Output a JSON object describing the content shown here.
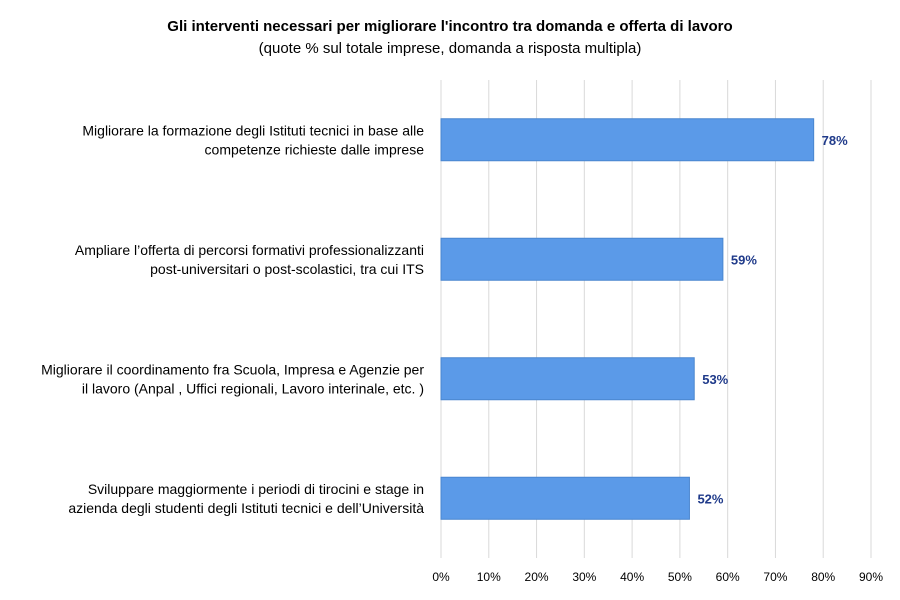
{
  "chart_data": {
    "type": "bar",
    "orientation": "horizontal",
    "title": "Gli interventi necessari per migliorare l'incontro tra domanda  e offerta di lavoro",
    "subtitle": "(quote % sul totale imprese, domanda a risposta multipla)",
    "categories": [
      [
        "Migliorare la formazione degli Istituti tecnici in base alle",
        "competenze richieste dalle imprese"
      ],
      [
        "Ampliare l’offerta di percorsi formativi professionalizzanti",
        "post-universitari o post-scolastici, tra cui ITS"
      ],
      [
        "Migliorare il coordinamento fra Scuola, Impresa e Agenzie per",
        "il lavoro (Anpal , Uffici regionali, Lavoro interinale, etc. )"
      ],
      [
        "Sviluppare maggiormente i periodi di tirocini e stage in",
        "azienda degli studenti degli Istituti tecnici e dell’Università"
      ]
    ],
    "values": [
      78,
      59,
      53,
      52
    ],
    "data_labels": [
      "78%",
      "59%",
      "53%",
      "52%"
    ],
    "xlim": [
      0,
      90
    ],
    "ticks": [
      0,
      10,
      20,
      30,
      40,
      50,
      60,
      70,
      80,
      90
    ],
    "tick_labels": [
      "0%",
      "10%",
      "20%",
      "30%",
      "40%",
      "50%",
      "60%",
      "70%",
      "80%",
      "90%"
    ],
    "grid": "vertical",
    "legend": "none",
    "colors": {
      "bar": "#5b9ae8",
      "bar_edge": "#4a86cf",
      "data_label": "#1f3a8a",
      "grid": "#d9d9d9"
    }
  }
}
